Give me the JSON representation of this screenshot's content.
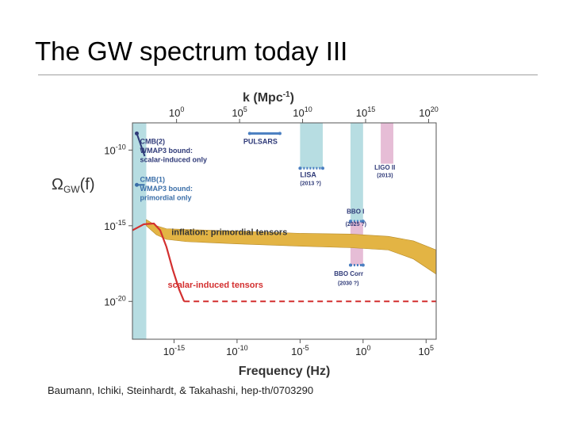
{
  "slide": {
    "title": "The GW spectrum today III",
    "citation": "Baumann, Ichiki, Steinhardt, & Takahashi, hep-th/0703290"
  },
  "chart_data": {
    "type": "line",
    "title": "",
    "top_axis": {
      "label": "k (Mpc-1)",
      "ticks": [
        {
          "value": 0,
          "text": "10",
          "exp": "0"
        },
        {
          "value": 5,
          "text": "10",
          "exp": "5"
        },
        {
          "value": 10,
          "text": "10",
          "exp": "10"
        },
        {
          "value": 15,
          "text": "10",
          "exp": "15"
        },
        {
          "value": 20,
          "text": "10",
          "exp": "20"
        }
      ]
    },
    "x_axis": {
      "label": "Frequency (Hz)",
      "scale": "log",
      "range_log10_hz": [
        -18.3,
        5.8
      ],
      "ticks": [
        {
          "value": -15,
          "text": "10",
          "exp": "-15"
        },
        {
          "value": -10,
          "text": "10",
          "exp": "-10"
        },
        {
          "value": -5,
          "text": "10",
          "exp": "-5"
        },
        {
          "value": 0,
          "text": "10",
          "exp": "0"
        },
        {
          "value": 5,
          "text": "10",
          "exp": "5"
        }
      ]
    },
    "y_axis": {
      "label": "ΩGW(f)",
      "scale": "log",
      "range_log10": [
        -22.5,
        -8.2
      ],
      "ticks": [
        {
          "value": -10,
          "text": "10",
          "exp": "-10"
        },
        {
          "value": -15,
          "text": "10",
          "exp": "-15"
        },
        {
          "value": -20,
          "text": "10",
          "exp": "-20"
        }
      ]
    },
    "grid": false,
    "series": [
      {
        "name": "inflation: primordial tensors",
        "kind": "band",
        "color": "#e3b444",
        "upper": [
          [
            -17.2,
            -14.6
          ],
          [
            -16.4,
            -15.0
          ],
          [
            -15.6,
            -15.2
          ],
          [
            -14,
            -15.25
          ],
          [
            -10,
            -15.35
          ],
          [
            -5,
            -15.5
          ],
          [
            -1,
            -15.55
          ],
          [
            2,
            -15.7
          ],
          [
            4,
            -16.0
          ],
          [
            5.8,
            -16.6
          ]
        ],
        "lower": [
          [
            -17.2,
            -15.0
          ],
          [
            -16.4,
            -15.6
          ],
          [
            -15.6,
            -15.9
          ],
          [
            -14,
            -16.05
          ],
          [
            -10,
            -16.2
          ],
          [
            -5,
            -16.35
          ],
          [
            -1,
            -16.45
          ],
          [
            2,
            -16.6
          ],
          [
            4,
            -17.2
          ],
          [
            5.8,
            -18.2
          ]
        ]
      },
      {
        "name": "scalar-induced tensors",
        "kind": "line",
        "color": "#d32f2f",
        "points": [
          [
            -18.3,
            -15.3
          ],
          [
            -17.4,
            -14.9
          ],
          [
            -16.6,
            -14.85
          ],
          [
            -16.1,
            -15.3
          ],
          [
            -15.6,
            -16.4
          ],
          [
            -15.1,
            -17.9
          ],
          [
            -14.6,
            -19.2
          ],
          [
            -14.2,
            -20.0
          ]
        ]
      },
      {
        "name": "scalar-induced tensors floor",
        "kind": "dashed",
        "color": "#d32f2f",
        "points": [
          [
            -14.2,
            -20.0
          ],
          [
            5.8,
            -20.0
          ]
        ]
      }
    ],
    "regions": [
      {
        "name": "CMB",
        "color": "#b7dde2",
        "x": [
          -18.3,
          -17.2
        ],
        "y": [
          -22.5,
          -8.2
        ]
      },
      {
        "name": "LISA",
        "color": "#b7dde2",
        "x": [
          -5.0,
          -3.2
        ],
        "y": [
          -11.2,
          -8.2
        ]
      },
      {
        "name": "BBO",
        "color": "#b7dde2",
        "x": [
          -1.0,
          0.0
        ],
        "y": [
          -14.7,
          -8.2
        ]
      },
      {
        "name": "BBO Corr",
        "color": "#e6bdd6",
        "x": [
          -1.0,
          0.0
        ],
        "y": [
          -17.6,
          -14.7
        ]
      },
      {
        "name": "LIGO II",
        "color": "#e6bdd6",
        "x": [
          1.4,
          2.4
        ],
        "y": [
          -10.9,
          -8.2
        ]
      }
    ],
    "sensitivities": [
      {
        "name": "PULSARS",
        "x": [
          -9.0,
          -6.6
        ],
        "y": -8.9
      },
      {
        "name": "LISA",
        "x": [
          -5.0,
          -3.2
        ],
        "y": -11.2
      },
      {
        "name": "BBO I",
        "x": [
          -1.0,
          0.0
        ],
        "y": -14.7
      },
      {
        "name": "BBO Corr",
        "x": [
          -1.0,
          0.0
        ],
        "y": -17.6
      }
    ],
    "cmb_bounds": [
      {
        "name": "CMB(2)",
        "x": -17.2,
        "y_top": -8.9,
        "y_bottom": -10.4,
        "color": "#2f3a78"
      },
      {
        "name": "CMB(1)",
        "x": -17.2,
        "y_top": -12.3,
        "y_bottom": -12.3,
        "color": "#3a6ea8"
      }
    ],
    "annotations": [
      {
        "key": "pulsars",
        "text": "PULSARS",
        "x": -9.5,
        "y": -9.6
      },
      {
        "key": "lisa",
        "text": "LISA",
        "x": -5.0,
        "y": -11.8
      },
      {
        "key": "lisa_year",
        "text": "(2013 ?)",
        "x": -5.0,
        "y": -12.3
      },
      {
        "key": "ligo",
        "text": "LIGO II",
        "x": 0.9,
        "y": -11.3
      },
      {
        "key": "ligo_year",
        "text": "(2013)",
        "x": 1.1,
        "y": -11.8
      },
      {
        "key": "bbo",
        "text": "BBO I",
        "x": -1.3,
        "y": -14.2
      },
      {
        "key": "bbo_year",
        "text": "(2025 ?)",
        "x": -1.4,
        "y": -15.0
      },
      {
        "key": "bbocorr",
        "text": "BBO Corr",
        "x": -2.3,
        "y": -18.3
      },
      {
        "key": "bbocorr_year",
        "text": "(2030 ?)",
        "x": -2.0,
        "y": -18.9
      },
      {
        "key": "cmb2",
        "text": "CMB(2)",
        "x": -17.7,
        "y": -9.6
      },
      {
        "key": "wmap_scalar1",
        "text": "WMAP3 bound:",
        "x": -17.7,
        "y": -10.2
      },
      {
        "key": "wmap_scalar2",
        "text": "scalar-induced only",
        "x": -17.7,
        "y": -10.8
      },
      {
        "key": "cmb1",
        "text": "CMB(1)",
        "x": -17.7,
        "y": -12.1
      },
      {
        "key": "wmap_prim1",
        "text": "WMAP3 bound:",
        "x": -17.7,
        "y": -12.7
      },
      {
        "key": "wmap_prim2",
        "text": "primordial only",
        "x": -17.7,
        "y": -13.3
      },
      {
        "key": "inflation",
        "text": "inflation: primordial tensors",
        "x": -15.2,
        "y": -15.6
      },
      {
        "key": "scalar",
        "text": "scalar-induced tensors",
        "x": -15.5,
        "y": -19.1
      }
    ]
  }
}
